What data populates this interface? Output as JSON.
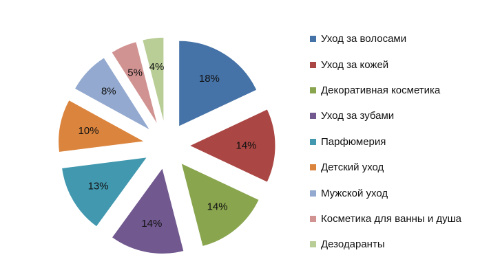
{
  "chart_data": {
    "type": "pie",
    "exploded": true,
    "label_format": "percent",
    "legend_position": "right",
    "title": "",
    "categories": [
      "Уход за волосами",
      "Уход за кожей",
      "Декоративная косметика",
      "Уход за зубами",
      "Парфюмерия",
      "Детский уход",
      "Мужской уход",
      "Косметика для ванны и душа",
      "Дезодаранты"
    ],
    "values": [
      18,
      14,
      14,
      14,
      13,
      10,
      8,
      5,
      4
    ],
    "labels": [
      "18%",
      "14%",
      "14%",
      "14%",
      "13%",
      "10%",
      "8%",
      "5%",
      "4%"
    ],
    "colors": [
      "#4572A7",
      "#AA4643",
      "#89A54E",
      "#71588F",
      "#4198AF",
      "#DB843D",
      "#93A9CF",
      "#D19392",
      "#B9CD96"
    ]
  }
}
